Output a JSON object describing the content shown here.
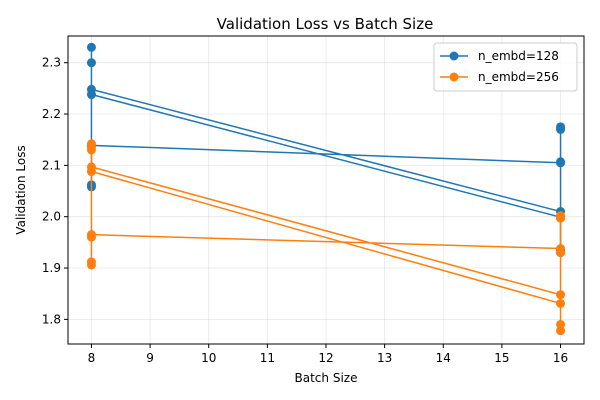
{
  "chart_data": {
    "type": "line",
    "title": "Validation Loss vs Batch Size",
    "xlabel": "Batch Size",
    "ylabel": "Validation Loss",
    "xlim": [
      7.6,
      16.4
    ],
    "ylim": [
      1.752,
      2.352
    ],
    "xticks": [
      8,
      9,
      10,
      11,
      12,
      13,
      14,
      15,
      16
    ],
    "yticks": [
      1.8,
      1.9,
      2.0,
      2.1,
      2.2,
      2.3
    ],
    "grid": true,
    "legend_position": "top-right",
    "series": [
      {
        "name": "n_embd=128",
        "color": "#1f77b4",
        "points": [
          {
            "x": 8,
            "y": 2.33
          },
          {
            "x": 8,
            "y": 2.3
          },
          {
            "x": 8,
            "y": 2.248
          },
          {
            "x": 16,
            "y": 2.01
          },
          {
            "x": 16,
            "y": 2.175
          },
          {
            "x": 16,
            "y": 2.107
          },
          {
            "x": 16,
            "y": 1.93
          },
          {
            "x": 16,
            "y": 1.999
          },
          {
            "x": 8,
            "y": 2.238
          },
          {
            "x": 8,
            "y": 2.062
          },
          {
            "x": 8,
            "y": 2.058
          },
          {
            "x": 8,
            "y": 2.139
          },
          {
            "x": 16,
            "y": 2.105
          },
          {
            "x": 16,
            "y": 2.17
          },
          {
            "x": 16,
            "y": 1.935
          }
        ]
      },
      {
        "name": "n_embd=256",
        "color": "#ff7f0e",
        "points": [
          {
            "x": 8,
            "y": 2.142
          },
          {
            "x": 8,
            "y": 2.135
          },
          {
            "x": 8,
            "y": 2.097
          },
          {
            "x": 16,
            "y": 1.848
          },
          {
            "x": 16,
            "y": 1.79
          },
          {
            "x": 16,
            "y": 1.778
          },
          {
            "x": 16,
            "y": 2.002
          },
          {
            "x": 16,
            "y": 1.997
          },
          {
            "x": 16,
            "y": 1.831
          },
          {
            "x": 8,
            "y": 2.088
          },
          {
            "x": 8,
            "y": 2.13
          },
          {
            "x": 8,
            "y": 1.912
          },
          {
            "x": 8,
            "y": 1.906
          },
          {
            "x": 8,
            "y": 1.96
          },
          {
            "x": 8,
            "y": 1.965
          },
          {
            "x": 16,
            "y": 1.938
          },
          {
            "x": 16,
            "y": 1.93
          }
        ]
      }
    ]
  }
}
